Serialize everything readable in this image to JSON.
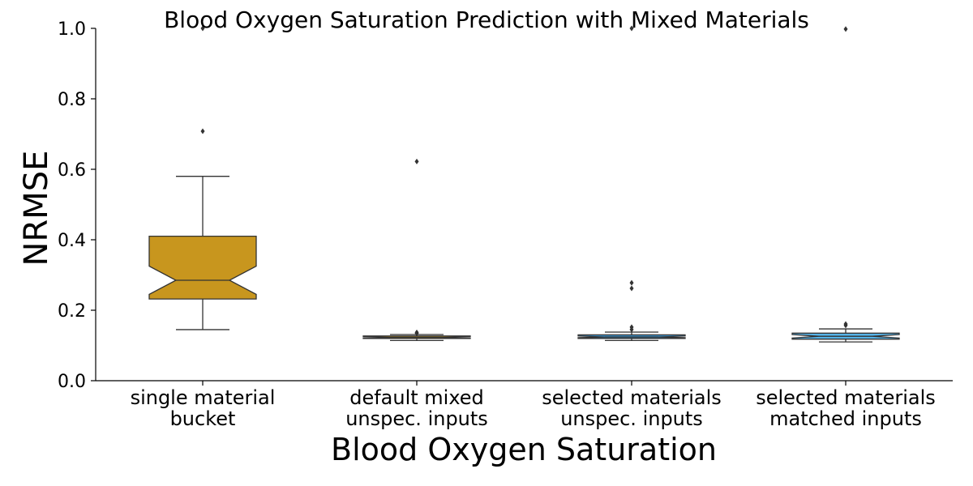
{
  "chart_data": {
    "type": "box",
    "title": "Blood Oxygen Saturation Prediction with Mixed Materials",
    "xlabel": "Blood Oxygen Saturation",
    "ylabel": "NRMSE",
    "ylim": [
      0,
      1.0
    ],
    "yticks": [
      "0.0",
      "0.2",
      "0.4",
      "0.6",
      "0.8",
      "1.0"
    ],
    "grid": false,
    "notched": true,
    "categories": [
      [
        "single material",
        "bucket"
      ],
      [
        "default mixed",
        "unspec. inputs"
      ],
      [
        "selected materials",
        "unspec. inputs"
      ],
      [
        "selected materials",
        "matched inputs"
      ]
    ],
    "boxes": [
      {
        "color": "#c8961e",
        "q1": 0.232,
        "median": 0.285,
        "q3": 0.41,
        "notch_low": 0.245,
        "notch_high": 0.325,
        "whisker_low": 0.145,
        "whisker_high": 0.58,
        "outliers": [
          0.708,
          1.0
        ]
      },
      {
        "color": "#c8961e",
        "q1": 0.12,
        "median": 0.123,
        "q3": 0.127,
        "notch_low": 0.121,
        "notch_high": 0.125,
        "whisker_low": 0.114,
        "whisker_high": 0.131,
        "outliers": [
          0.134,
          0.137,
          0.622
        ]
      },
      {
        "color": "#3a8fc8",
        "q1": 0.12,
        "median": 0.124,
        "q3": 0.13,
        "notch_low": 0.122,
        "notch_high": 0.127,
        "whisker_low": 0.114,
        "whisker_high": 0.138,
        "outliers": [
          0.145,
          0.152,
          0.262,
          0.278,
          1.0
        ]
      },
      {
        "color": "#56b4e9",
        "q1": 0.118,
        "median": 0.126,
        "q3": 0.135,
        "notch_low": 0.121,
        "notch_high": 0.131,
        "whisker_low": 0.11,
        "whisker_high": 0.147,
        "outliers": [
          0.157,
          0.161,
          0.998
        ]
      }
    ]
  }
}
